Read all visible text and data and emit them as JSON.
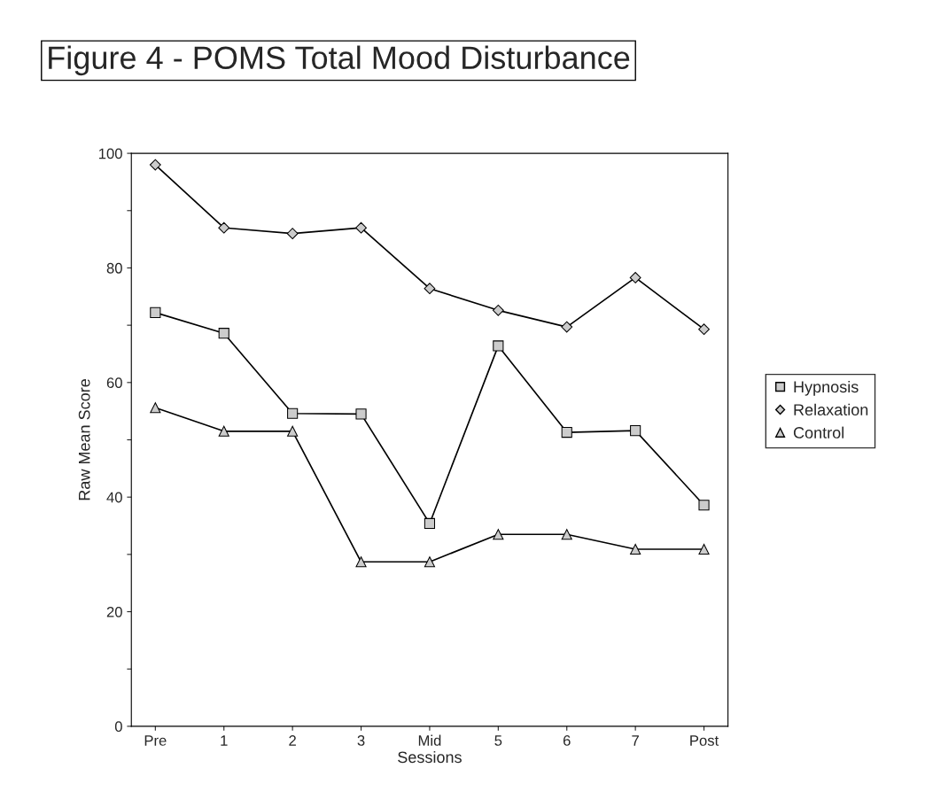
{
  "chart_data": {
    "type": "line",
    "title": "Figure 4 - POMS Total Mood Disturbance",
    "xlabel": "Sessions",
    "ylabel": "Raw Mean Score",
    "categories": [
      "Pre",
      "1",
      "2",
      "3",
      "Mid",
      "5",
      "6",
      "7",
      "Post"
    ],
    "series": [
      {
        "name": "Hypnosis",
        "color": "#000000",
        "marker": "square",
        "values": [
          72.2,
          68.6,
          54.6,
          54.5,
          35.4,
          66.4,
          51.3,
          51.6,
          38.6
        ]
      },
      {
        "name": "Relaxation",
        "color": "#000000",
        "marker": "diamond",
        "values": [
          98,
          87,
          86,
          87,
          76.4,
          72.6,
          69.7,
          78.3,
          69.3
        ]
      },
      {
        "name": "Control",
        "color": "#000000",
        "marker": "triangle",
        "values": [
          55.6,
          51.5,
          51.5,
          28.7,
          28.7,
          33.5,
          33.5,
          30.9,
          30.9
        ]
      }
    ],
    "ylim": [
      0,
      100
    ],
    "yticks": [
      0,
      {
        "value": 10,
        "label": null
      },
      20,
      {
        "value": 30,
        "label": null
      },
      40,
      {
        "value": 50,
        "label": null
      },
      60,
      {
        "value": 70,
        "label": null
      },
      80,
      {
        "value": 90,
        "label": null
      },
      100
    ],
    "grid": false,
    "legend": "right",
    "line_style": "solid"
  }
}
